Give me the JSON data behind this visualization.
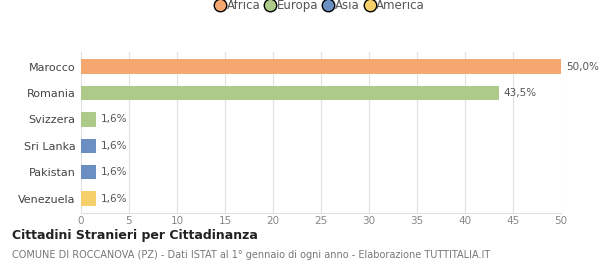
{
  "categories": [
    "Marocco",
    "Romania",
    "Svizzera",
    "Sri Lanka",
    "Pakistan",
    "Venezuela"
  ],
  "values": [
    50.0,
    43.5,
    1.6,
    1.6,
    1.6,
    1.6
  ],
  "labels": [
    "50,0%",
    "43,5%",
    "1,6%",
    "1,6%",
    "1,6%",
    "1,6%"
  ],
  "bar_colors": [
    "#F4A870",
    "#AECA8A",
    "#AECA8A",
    "#6B8FC2",
    "#6B8FC2",
    "#F5D06A"
  ],
  "legend_items": [
    {
      "label": "Africa",
      "color": "#F4A870"
    },
    {
      "label": "Europa",
      "color": "#AECA8A"
    },
    {
      "label": "Asia",
      "color": "#6B8FC2"
    },
    {
      "label": "America",
      "color": "#F5D06A"
    }
  ],
  "xlim": [
    0,
    50
  ],
  "xticks": [
    0,
    5,
    10,
    15,
    20,
    25,
    30,
    35,
    40,
    45,
    50
  ],
  "title": "Cittadini Stranieri per Cittadinanza",
  "subtitle": "COMUNE DI ROCCANOVA (PZ) - Dati ISTAT al 1° gennaio di ogni anno - Elaborazione TUTTITALIA.IT",
  "bg_color": "#FFFFFF",
  "grid_color": "#E0E0E0",
  "bar_height": 0.55,
  "label_fontsize": 7.5,
  "tick_fontsize": 7.5,
  "ytick_fontsize": 8,
  "legend_fontsize": 8.5,
  "title_fontsize": 9,
  "subtitle_fontsize": 7
}
